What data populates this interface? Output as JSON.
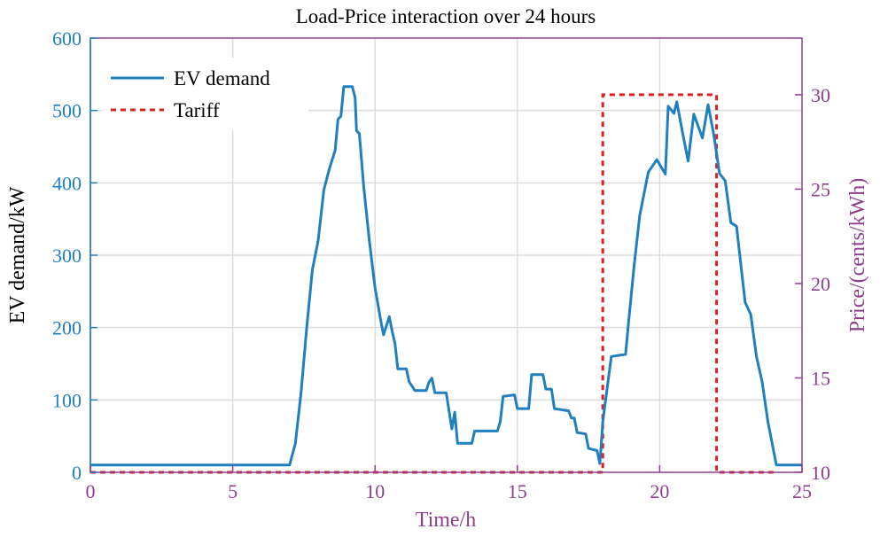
{
  "chart_data": {
    "type": "line",
    "title": "Load-Price interaction over 24 hours",
    "xlabel": "Time/h",
    "ylabel_left": "EV demand/kW",
    "ylabel_right": "Price/(cents/kWh)",
    "xlim": [
      0,
      25
    ],
    "ylim_left": [
      0,
      600
    ],
    "ylim_right": [
      10,
      33
    ],
    "x_ticks": [
      0,
      5,
      10,
      15,
      20,
      25
    ],
    "y_ticks_left": [
      0,
      100,
      200,
      300,
      400,
      500,
      600
    ],
    "y_ticks_right": [
      10,
      15,
      20,
      25,
      30
    ],
    "grid": true,
    "legend_position": "top-left",
    "colors": {
      "demand": "#1f7fbf",
      "tariff": "#e02020",
      "left_axis": "#1f7fbf",
      "right_axis": "#8e3f8e",
      "grid": "#dcdcdc"
    },
    "series": [
      {
        "name": "EV demand",
        "axis": "left",
        "style": "solid",
        "points": [
          [
            0,
            10
          ],
          [
            7.0,
            10
          ],
          [
            7.2,
            40
          ],
          [
            7.4,
            110
          ],
          [
            7.6,
            200
          ],
          [
            7.8,
            280
          ],
          [
            8.0,
            320
          ],
          [
            8.2,
            390
          ],
          [
            8.4,
            420
          ],
          [
            8.6,
            445
          ],
          [
            8.7,
            488
          ],
          [
            8.8,
            492
          ],
          [
            8.9,
            533
          ],
          [
            9.2,
            533
          ],
          [
            9.3,
            518
          ],
          [
            9.35,
            472
          ],
          [
            9.45,
            468
          ],
          [
            9.6,
            395
          ],
          [
            9.8,
            320
          ],
          [
            10.0,
            255
          ],
          [
            10.2,
            210
          ],
          [
            10.3,
            190
          ],
          [
            10.5,
            215
          ],
          [
            10.6,
            195
          ],
          [
            10.7,
            178
          ],
          [
            10.8,
            143
          ],
          [
            11.1,
            143
          ],
          [
            11.2,
            125
          ],
          [
            11.4,
            113
          ],
          [
            11.8,
            113
          ],
          [
            11.9,
            125
          ],
          [
            12.0,
            130
          ],
          [
            12.1,
            110
          ],
          [
            12.5,
            110
          ],
          [
            12.6,
            85
          ],
          [
            12.7,
            60
          ],
          [
            12.8,
            83
          ],
          [
            12.9,
            40
          ],
          [
            13.4,
            40
          ],
          [
            13.5,
            57
          ],
          [
            14.3,
            57
          ],
          [
            14.4,
            70
          ],
          [
            14.5,
            105
          ],
          [
            14.9,
            107
          ],
          [
            15.0,
            88
          ],
          [
            15.4,
            88
          ],
          [
            15.5,
            135
          ],
          [
            15.9,
            135
          ],
          [
            16.0,
            115
          ],
          [
            16.2,
            115
          ],
          [
            16.3,
            88
          ],
          [
            16.8,
            85
          ],
          [
            16.9,
            75
          ],
          [
            17.0,
            75
          ],
          [
            17.1,
            55
          ],
          [
            17.4,
            53
          ],
          [
            17.5,
            33
          ],
          [
            17.8,
            30
          ],
          [
            17.9,
            12
          ],
          [
            18.0,
            70
          ],
          [
            18.3,
            160
          ],
          [
            18.8,
            163
          ],
          [
            18.9,
            205
          ],
          [
            19.1,
            285
          ],
          [
            19.3,
            355
          ],
          [
            19.6,
            415
          ],
          [
            19.9,
            432
          ],
          [
            20.2,
            412
          ],
          [
            20.3,
            506
          ],
          [
            20.5,
            496
          ],
          [
            20.6,
            512
          ],
          [
            20.8,
            470
          ],
          [
            21.0,
            430
          ],
          [
            21.2,
            495
          ],
          [
            21.5,
            462
          ],
          [
            21.7,
            508
          ],
          [
            21.9,
            467
          ],
          [
            22.1,
            413
          ],
          [
            22.3,
            403
          ],
          [
            22.5,
            345
          ],
          [
            22.7,
            340
          ],
          [
            23.0,
            235
          ],
          [
            23.2,
            218
          ],
          [
            23.4,
            160
          ],
          [
            23.6,
            125
          ],
          [
            23.8,
            70
          ],
          [
            24.0,
            30
          ],
          [
            24.1,
            10
          ],
          [
            26.0,
            10
          ]
        ]
      },
      {
        "name": "Tariff",
        "axis": "right",
        "style": "dashed",
        "points": [
          [
            0,
            10
          ],
          [
            18.0,
            10
          ],
          [
            18.0,
            30
          ],
          [
            22.0,
            30
          ],
          [
            22.0,
            10
          ],
          [
            24.0,
            10
          ]
        ]
      }
    ]
  }
}
